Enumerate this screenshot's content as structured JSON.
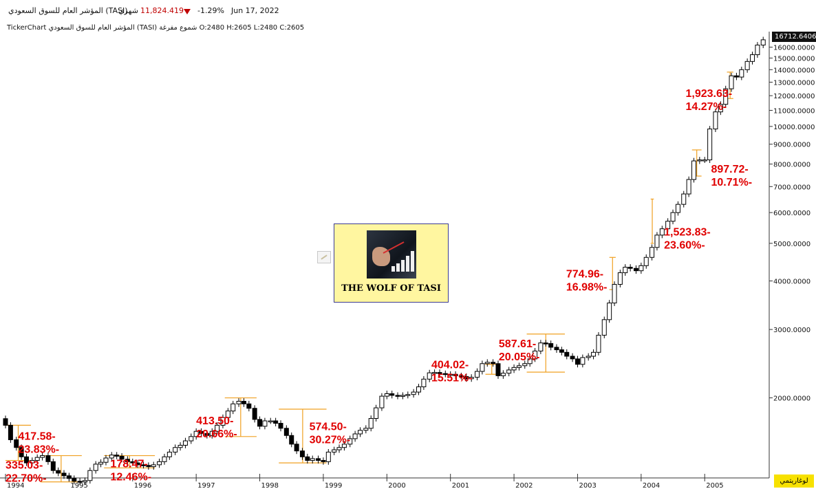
{
  "header": {
    "index_name": "المؤشر العام للسوق السعودي (TASI)",
    "period": "شهري",
    "last_value": "11,824.419",
    "change_pct": "-1.29%",
    "date": "Jun 17, 2022"
  },
  "ohlc_line": "TickerChart المؤشر العام للسوق السعودي (TASI) شموع مفرغة O:2480 H:2605 L:2480 C:2605",
  "last_price_tag": "16712.6406",
  "log_button": "لوغاريتمي",
  "logo": {
    "title": "THE WOLF OF TASI"
  },
  "colors": {
    "annotation": "#e00000",
    "bracket": "#f0a020",
    "down_arrow": "#c00000",
    "price_tag_bg": "#111111",
    "log_button_bg": "#f7e100"
  },
  "chart_data": {
    "type": "candlestick",
    "title": "",
    "xlabel": "",
    "ylabel": "",
    "yscale": "log",
    "ylim": [
      1280,
      17400
    ],
    "x_range": [
      1994.0,
      2005.95
    ],
    "grid": false,
    "y_ticks": [
      2000,
      3000,
      4000,
      5000,
      6000,
      7000,
      8000,
      9000,
      10000,
      11000,
      12000,
      13000,
      14000,
      15000,
      16000
    ],
    "y_tick_labels": [
      "2000.0000",
      "3000.0000",
      "4000.0000",
      "5000.0000",
      "6000.0000",
      "7000.0000",
      "8000.0000",
      "9000.0000",
      "10000.0000",
      "11000.0000",
      "12000.0000",
      "13000.0000",
      "14000.0000",
      "15000.0000",
      "16000.0000"
    ],
    "x_ticks": [
      1994,
      1995,
      1996,
      1997,
      1998,
      1999,
      2000,
      2001,
      2002,
      2003,
      2004,
      2005
    ],
    "close_path": [
      [
        1994.0,
        1700
      ],
      [
        1994.08,
        1560
      ],
      [
        1994.17,
        1490
      ],
      [
        1994.25,
        1410
      ],
      [
        1994.33,
        1360
      ],
      [
        1994.42,
        1380
      ],
      [
        1994.5,
        1405
      ],
      [
        1994.58,
        1420
      ],
      [
        1994.67,
        1370
      ],
      [
        1994.75,
        1300
      ],
      [
        1994.83,
        1280
      ],
      [
        1994.92,
        1260
      ],
      [
        1995.0,
        1240
      ],
      [
        1995.08,
        1220
      ],
      [
        1995.17,
        1215
      ],
      [
        1995.25,
        1225
      ],
      [
        1995.33,
        1300
      ],
      [
        1995.42,
        1350
      ],
      [
        1995.5,
        1365
      ],
      [
        1995.58,
        1400
      ],
      [
        1995.67,
        1425
      ],
      [
        1995.75,
        1415
      ],
      [
        1995.83,
        1390
      ],
      [
        1995.92,
        1370
      ],
      [
        1996.0,
        1360
      ],
      [
        1996.08,
        1345
      ],
      [
        1996.17,
        1340
      ],
      [
        1996.25,
        1330
      ],
      [
        1996.33,
        1345
      ],
      [
        1996.42,
        1370
      ],
      [
        1996.5,
        1410
      ],
      [
        1996.58,
        1450
      ],
      [
        1996.67,
        1490
      ],
      [
        1996.75,
        1510
      ],
      [
        1996.83,
        1550
      ],
      [
        1996.92,
        1590
      ],
      [
        1997.0,
        1640
      ],
      [
        1997.08,
        1620
      ],
      [
        1997.17,
        1600
      ],
      [
        1997.25,
        1640
      ],
      [
        1997.33,
        1700
      ],
      [
        1997.42,
        1780
      ],
      [
        1997.5,
        1850
      ],
      [
        1997.58,
        1930
      ],
      [
        1997.67,
        1960
      ],
      [
        1997.75,
        1930
      ],
      [
        1997.83,
        1880
      ],
      [
        1997.92,
        1760
      ],
      [
        1998.0,
        1690
      ],
      [
        1998.08,
        1745
      ],
      [
        1998.17,
        1745
      ],
      [
        1998.25,
        1720
      ],
      [
        1998.33,
        1670
      ],
      [
        1998.42,
        1600
      ],
      [
        1998.5,
        1520
      ],
      [
        1998.58,
        1460
      ],
      [
        1998.67,
        1410
      ],
      [
        1998.75,
        1380
      ],
      [
        1998.83,
        1395
      ],
      [
        1998.92,
        1380
      ],
      [
        1999.0,
        1370
      ],
      [
        1999.08,
        1450
      ],
      [
        1999.17,
        1470
      ],
      [
        1999.25,
        1490
      ],
      [
        1999.33,
        1520
      ],
      [
        1999.42,
        1570
      ],
      [
        1999.5,
        1615
      ],
      [
        1999.58,
        1650
      ],
      [
        1999.67,
        1670
      ],
      [
        1999.75,
        1770
      ],
      [
        1999.83,
        1885
      ],
      [
        1999.92,
        2020
      ],
      [
        2000.0,
        2050
      ],
      [
        2000.08,
        2030
      ],
      [
        2000.17,
        2020
      ],
      [
        2000.25,
        2030
      ],
      [
        2000.33,
        2040
      ],
      [
        2000.42,
        2070
      ],
      [
        2000.5,
        2135
      ],
      [
        2000.58,
        2235
      ],
      [
        2000.67,
        2320
      ],
      [
        2000.75,
        2325
      ],
      [
        2000.83,
        2310
      ],
      [
        2000.92,
        2300
      ],
      [
        2001.0,
        2300
      ],
      [
        2001.08,
        2280
      ],
      [
        2001.17,
        2270
      ],
      [
        2001.25,
        2240
      ],
      [
        2001.33,
        2260
      ],
      [
        2001.42,
        2340
      ],
      [
        2001.5,
        2450
      ],
      [
        2001.58,
        2470
      ],
      [
        2001.67,
        2450
      ],
      [
        2001.75,
        2280
      ],
      [
        2001.83,
        2315
      ],
      [
        2001.92,
        2360
      ],
      [
        2002.0,
        2395
      ],
      [
        2002.08,
        2420
      ],
      [
        2002.17,
        2450
      ],
      [
        2002.25,
        2520
      ],
      [
        2002.33,
        2640
      ],
      [
        2002.42,
        2770
      ],
      [
        2002.5,
        2760
      ],
      [
        2002.58,
        2700
      ],
      [
        2002.67,
        2660
      ],
      [
        2002.75,
        2620
      ],
      [
        2002.83,
        2560
      ],
      [
        2002.92,
        2520
      ],
      [
        2003.0,
        2440
      ],
      [
        2003.08,
        2540
      ],
      [
        2003.17,
        2560
      ],
      [
        2003.25,
        2620
      ],
      [
        2003.33,
        2900
      ],
      [
        2003.42,
        3180
      ],
      [
        2003.5,
        3510
      ],
      [
        2003.58,
        3920
      ],
      [
        2003.67,
        4200
      ],
      [
        2003.75,
        4340
      ],
      [
        2003.83,
        4310
      ],
      [
        2003.92,
        4250
      ],
      [
        2004.0,
        4380
      ],
      [
        2004.08,
        4600
      ],
      [
        2004.17,
        4880
      ],
      [
        2004.25,
        5250
      ],
      [
        2004.33,
        5450
      ],
      [
        2004.42,
        5700
      ],
      [
        2004.5,
        6000
      ],
      [
        2004.58,
        6300
      ],
      [
        2004.67,
        6700
      ],
      [
        2004.75,
        7300
      ],
      [
        2004.83,
        8150
      ],
      [
        2004.92,
        8200
      ],
      [
        2005.0,
        8200
      ],
      [
        2005.08,
        9850
      ],
      [
        2005.17,
        10900
      ],
      [
        2005.25,
        11400
      ],
      [
        2005.33,
        12500
      ],
      [
        2005.42,
        13500
      ],
      [
        2005.5,
        13400
      ],
      [
        2005.58,
        14000
      ],
      [
        2005.67,
        14700
      ],
      [
        2005.75,
        15300
      ],
      [
        2005.83,
        16200
      ],
      [
        2005.92,
        16712.64
      ]
    ],
    "annotations": [
      {
        "lines": [
          "417.58-",
          "23.83%-"
        ],
        "anchor": [
          1994.2,
          1560
        ]
      },
      {
        "lines": [
          "335.03-",
          "22.70%-"
        ],
        "anchor": [
          1994.0,
          1315
        ]
      },
      {
        "lines": [
          "178.47-",
          "12.46%-"
        ],
        "anchor": [
          1995.65,
          1325
        ]
      },
      {
        "lines": [
          "413.50-",
          "20.66%-"
        ],
        "anchor": [
          1997.0,
          1710
        ]
      },
      {
        "lines": [
          "574.50-",
          "30.27%-"
        ],
        "anchor": [
          1998.78,
          1650
        ]
      },
      {
        "lines": [
          "404.02-",
          "15.51%-"
        ],
        "anchor": [
          2000.7,
          2385
        ]
      },
      {
        "lines": [
          "587.61-",
          "20.05%-"
        ],
        "anchor": [
          2001.76,
          2700
        ]
      },
      {
        "lines": [
          "774.96-",
          "16.98%-"
        ],
        "anchor": [
          2002.82,
          4080
        ]
      },
      {
        "lines": [
          "1,523.83-",
          "23.60%-"
        ],
        "anchor": [
          2004.36,
          5240
        ]
      },
      {
        "lines": [
          "897.72-",
          "10.71%-"
        ],
        "anchor": [
          2005.1,
          7600
        ]
      },
      {
        "lines": [
          "1,923.63-",
          "14.27%-"
        ],
        "anchor": [
          2004.7,
          11900
        ]
      }
    ]
  }
}
